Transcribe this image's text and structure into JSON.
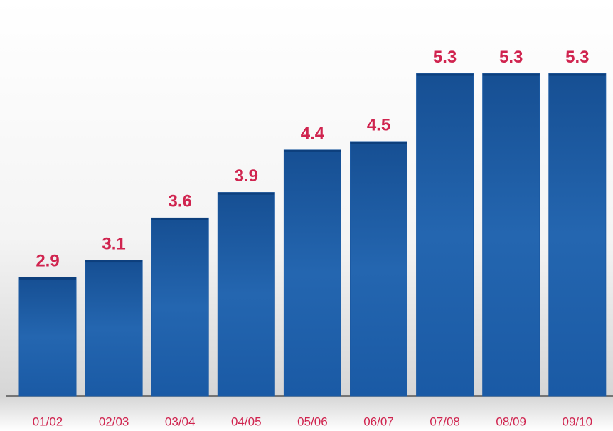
{
  "chart_data": {
    "type": "bar",
    "categories": [
      "01/02",
      "02/03",
      "03/04",
      "04/05",
      "05/06",
      "06/07",
      "07/08",
      "08/09",
      "09/10"
    ],
    "values": [
      2.9,
      3.1,
      3.6,
      3.9,
      4.4,
      4.5,
      5.3,
      5.3,
      5.3
    ],
    "color": "#1c5aa3",
    "label_color": "#d0244f",
    "ylim": [
      1.5,
      6.0
    ]
  }
}
